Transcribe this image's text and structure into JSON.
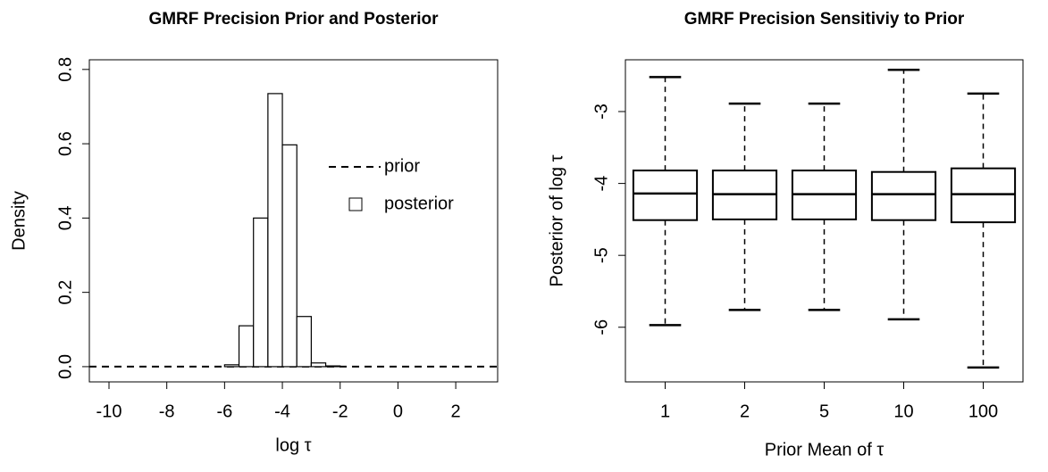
{
  "chart_data": [
    {
      "type": "histogram",
      "title": "GMRF Precision Prior and Posterior",
      "xlabel": "log τ",
      "ylabel": "Density",
      "xlim": [
        -10.68,
        3.45
      ],
      "ylim": [
        -0.041,
        0.826
      ],
      "xticks": [
        -10,
        -8,
        -6,
        -4,
        -2,
        0,
        2
      ],
      "yticks": [
        {
          "value": 0,
          "label": "0.0"
        },
        0.2,
        0.4,
        0.6,
        0.8
      ],
      "series": [
        {
          "name": "prior",
          "line": "dashed",
          "color": "#000000",
          "x": [
            -10.68,
            3.45
          ],
          "values": [
            0,
            0
          ]
        },
        {
          "name": "posterior",
          "color": "#000000",
          "fill": "#ffffff",
          "bins": [
            -6,
            -5.5,
            -5,
            -4.5,
            -4,
            -3.5,
            -3,
            -2.5,
            -2
          ],
          "values": [
            0.005,
            0.11,
            0.4,
            0.735,
            0.597,
            0.135,
            0.01,
            0.002
          ]
        }
      ]
    },
    {
      "type": "boxplot",
      "title": "GMRF Precision Sensitiviy to Prior",
      "xlabel": "Prior Mean of τ",
      "ylabel": "Posterior of log τ",
      "ylim": [
        -6.76,
        -2.28
      ],
      "yticks": [
        -6,
        -5,
        -4,
        -3
      ],
      "color": "#000000",
      "categories": [
        "1",
        "2",
        "5",
        "10",
        "100"
      ],
      "whislo": [
        -5.97,
        -5.76,
        -5.76,
        -5.89,
        -6.56
      ],
      "q1": [
        -4.51,
        -4.5,
        -4.5,
        -4.51,
        -4.54
      ],
      "median": [
        -4.14,
        -4.15,
        -4.15,
        -4.15,
        -4.15
      ],
      "q3": [
        -3.82,
        -3.82,
        -3.82,
        -3.84,
        -3.79
      ],
      "whishi": [
        -2.52,
        -2.89,
        -2.89,
        -2.42,
        -2.75
      ]
    }
  ]
}
